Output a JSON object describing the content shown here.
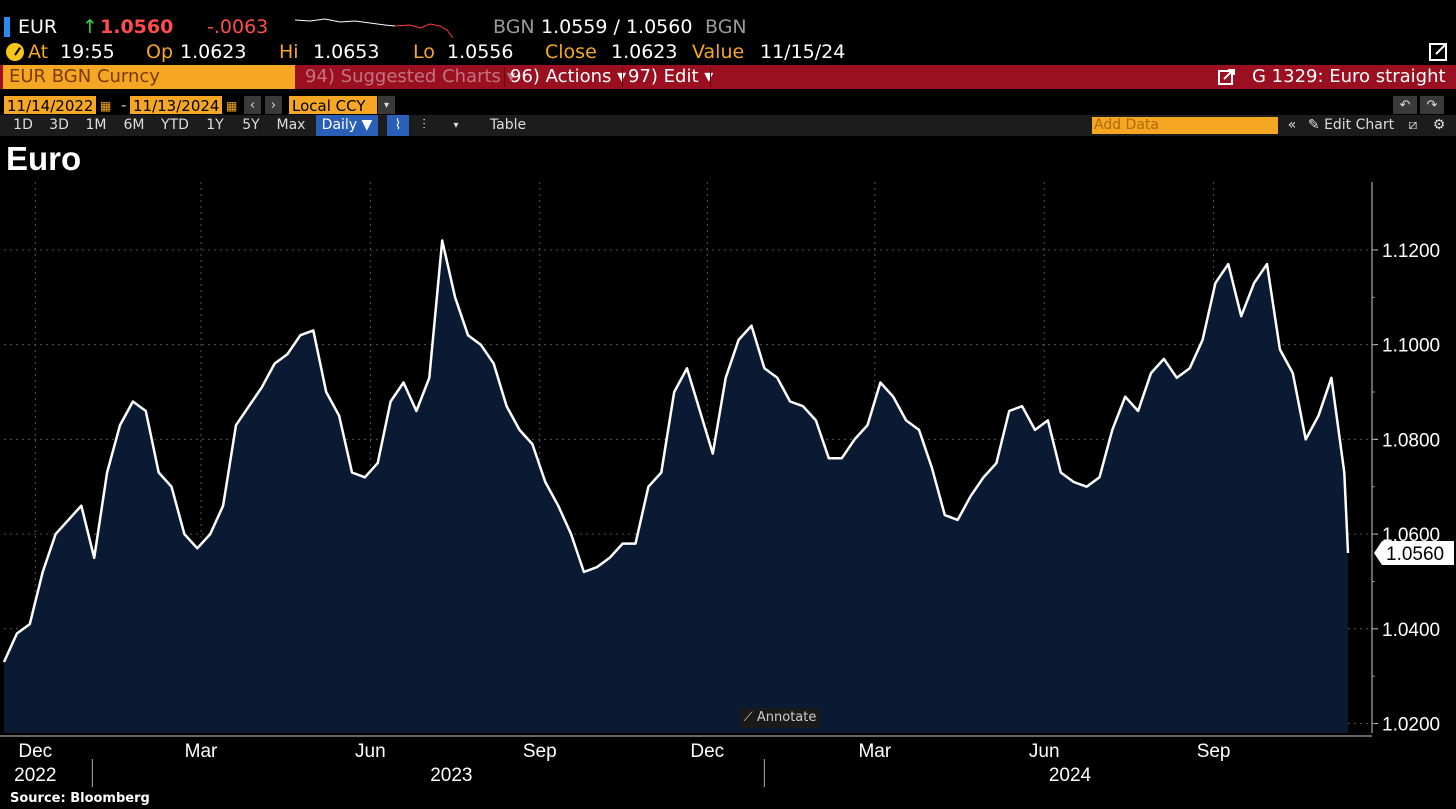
{
  "header": {
    "ticker": "EUR",
    "arrow": "↑",
    "last": "1.0560",
    "change": "-.0063",
    "source1": "BGN",
    "bid_ask": "1.0559 / 1.0560",
    "source2": "BGN",
    "at_label": "At",
    "at_time": "19:55",
    "op_label": "Op",
    "op": "1.0623",
    "hi_label": "Hi",
    "hi": "1.0653",
    "lo_label": "Lo",
    "lo": "1.0556",
    "close_label": "Close",
    "close": "1.0623",
    "value_label": "Value",
    "value_date": "11/15/24"
  },
  "menu": {
    "security": "EUR BGN Curncy",
    "suggested": "94) Suggested Charts",
    "actions": "96) Actions",
    "edit": "97) Edit",
    "chart_id": "G 1329: Euro straight"
  },
  "controls": {
    "start_date": "11/14/2022",
    "end_date": "11/13/2024",
    "currency": "Local CCY"
  },
  "toolbar": {
    "ranges": [
      "1D",
      "3D",
      "1M",
      "6M",
      "YTD",
      "1Y",
      "5Y",
      "Max"
    ],
    "frequency": "Daily",
    "table": "Table",
    "add_data_placeholder": "Add Data",
    "edit_chart": "Edit Chart"
  },
  "annotate_label": "Annotate",
  "source": "Source: Bloomberg",
  "colors": {
    "line": "#ffffff",
    "area": "#0b1a33",
    "background": "#000000",
    "menu_bar": "#9b1020",
    "accent_orange": "#f5a623"
  },
  "chart_data": {
    "type": "area",
    "title": "Euro",
    "ylim": [
      1.018,
      1.1335
    ],
    "yticks": [
      1.02,
      1.04,
      1.06,
      1.08,
      1.1,
      1.12
    ],
    "ytick_labels": [
      "1.0200",
      "1.0400",
      "1.0600",
      "1.0800",
      "1.1000",
      "1.1200"
    ],
    "last_value_label": "1.0560",
    "x_month_labels": [
      "Dec",
      "Mar",
      "Jun",
      "Sep",
      "Dec",
      "Mar",
      "Jun",
      "Sep"
    ],
    "x_year_labels": [
      "2022",
      "2023",
      "2024"
    ],
    "grid": true,
    "series": [
      {
        "x": [
          "2022-11-14",
          "2022-11-21",
          "2022-11-28",
          "2022-12-05",
          "2022-12-12",
          "2022-12-19",
          "2022-12-26",
          "2023-01-02",
          "2023-01-09",
          "2023-01-16",
          "2023-01-23",
          "2023-01-30",
          "2023-02-06",
          "2023-02-13",
          "2023-02-20",
          "2023-02-27",
          "2023-03-06",
          "2023-03-13",
          "2023-03-20",
          "2023-03-27",
          "2023-04-03",
          "2023-04-10",
          "2023-04-17",
          "2023-04-24",
          "2023-05-01",
          "2023-05-08",
          "2023-05-15",
          "2023-05-22",
          "2023-05-29",
          "2023-06-05",
          "2023-06-12",
          "2023-06-19",
          "2023-06-26",
          "2023-07-03",
          "2023-07-10",
          "2023-07-17",
          "2023-07-24",
          "2023-07-31",
          "2023-08-07",
          "2023-08-14",
          "2023-08-21",
          "2023-08-28",
          "2023-09-04",
          "2023-09-11",
          "2023-09-18",
          "2023-09-25",
          "2023-10-02",
          "2023-10-09",
          "2023-10-16",
          "2023-10-23",
          "2023-10-30",
          "2023-11-06",
          "2023-11-13",
          "2023-11-20",
          "2023-11-27",
          "2023-12-04",
          "2023-12-11",
          "2023-12-18",
          "2023-12-25",
          "2024-01-01",
          "2024-01-08",
          "2024-01-15",
          "2024-01-22",
          "2024-01-29",
          "2024-02-05",
          "2024-02-12",
          "2024-02-19",
          "2024-02-26",
          "2024-03-04",
          "2024-03-11",
          "2024-03-18",
          "2024-03-25",
          "2024-04-01",
          "2024-04-08",
          "2024-04-15",
          "2024-04-22",
          "2024-04-29",
          "2024-05-06",
          "2024-05-13",
          "2024-05-20",
          "2024-05-27",
          "2024-06-03",
          "2024-06-10",
          "2024-06-17",
          "2024-06-24",
          "2024-07-01",
          "2024-07-08",
          "2024-07-15",
          "2024-07-22",
          "2024-07-29",
          "2024-08-05",
          "2024-08-12",
          "2024-08-19",
          "2024-08-26",
          "2024-09-02",
          "2024-09-09",
          "2024-09-16",
          "2024-09-23",
          "2024-09-30",
          "2024-10-07",
          "2024-10-14",
          "2024-10-21",
          "2024-10-28",
          "2024-11-04",
          "2024-11-11",
          "2024-11-13"
        ],
        "y": [
          1.033,
          1.039,
          1.041,
          1.052,
          1.06,
          1.063,
          1.066,
          1.055,
          1.073,
          1.083,
          1.088,
          1.086,
          1.073,
          1.07,
          1.06,
          1.057,
          1.06,
          1.066,
          1.083,
          1.087,
          1.091,
          1.096,
          1.098,
          1.102,
          1.103,
          1.09,
          1.085,
          1.073,
          1.072,
          1.075,
          1.088,
          1.092,
          1.086,
          1.093,
          1.122,
          1.11,
          1.102,
          1.1,
          1.096,
          1.087,
          1.082,
          1.079,
          1.071,
          1.066,
          1.06,
          1.052,
          1.053,
          1.055,
          1.058,
          1.058,
          1.07,
          1.073,
          1.09,
          1.095,
          1.086,
          1.077,
          1.093,
          1.101,
          1.104,
          1.095,
          1.093,
          1.088,
          1.087,
          1.084,
          1.076,
          1.076,
          1.08,
          1.083,
          1.092,
          1.089,
          1.084,
          1.082,
          1.074,
          1.064,
          1.063,
          1.068,
          1.072,
          1.075,
          1.086,
          1.087,
          1.082,
          1.084,
          1.073,
          1.071,
          1.07,
          1.072,
          1.082,
          1.089,
          1.086,
          1.094,
          1.097,
          1.093,
          1.095,
          1.101,
          1.113,
          1.117,
          1.106,
          1.113,
          1.117,
          1.099,
          1.094,
          1.08,
          1.085,
          1.093,
          1.073,
          1.056
        ]
      }
    ]
  }
}
